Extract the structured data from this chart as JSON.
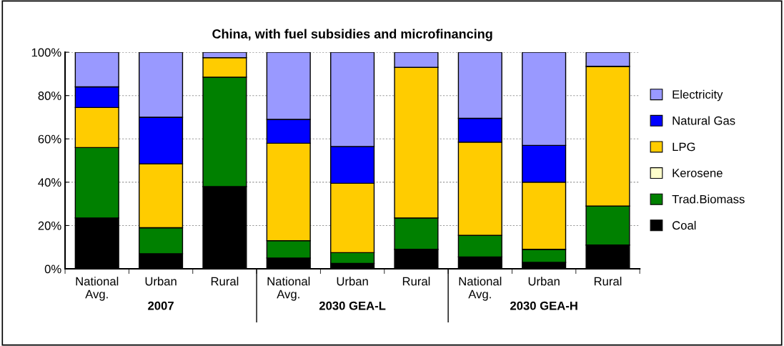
{
  "chart_data": {
    "type": "bar",
    "title": "China, with fuel subsidies and microfinancing",
    "categories": [
      "National\nAvg.",
      "Urban",
      "Rural",
      "National\nAvg.",
      "Urban",
      "Rural",
      "National\nAvg.",
      "Urban",
      "Rural"
    ],
    "stacked": true,
    "series": [
      {
        "name": "Coal",
        "color": "#000000",
        "values": [
          23.5,
          7,
          38,
          5,
          2.5,
          9,
          5.5,
          3,
          11
        ]
      },
      {
        "name": "Trad.Biomass",
        "color": "#008000",
        "values": [
          32.5,
          12,
          50.5,
          8,
          5,
          14.5,
          10,
          6,
          18
        ]
      },
      {
        "name": "Kerosene",
        "color": "#ffffcc",
        "values": [
          0,
          0,
          0,
          0,
          0,
          0,
          0,
          0,
          0
        ]
      },
      {
        "name": "LPG",
        "color": "#ffcc00",
        "values": [
          18.5,
          29.5,
          9,
          45,
          32,
          69.5,
          43,
          31,
          64.5
        ]
      },
      {
        "name": "Natural Gas",
        "color": "#0000ff",
        "values": [
          9.5,
          21.5,
          0,
          11,
          17,
          0,
          11,
          17,
          0
        ]
      },
      {
        "name": "Electricity",
        "color": "#9999ff",
        "values": [
          16,
          30,
          2.5,
          31,
          43.5,
          7,
          30.5,
          43,
          6.5
        ]
      }
    ],
    "ylim": [
      0,
      100
    ],
    "yticks": [
      {
        "value": 0,
        "label": "0%"
      },
      {
        "value": 20,
        "label": "20%"
      },
      {
        "value": 40,
        "label": "40%"
      },
      {
        "value": 60,
        "label": "60%"
      },
      {
        "value": 80,
        "label": "80%"
      },
      {
        "value": 100,
        "label": "100%"
      }
    ],
    "annotations": [
      "2007",
      "2030 GEA-L",
      "2030 GEA-H"
    ],
    "grid": "y",
    "legend": "right"
  }
}
